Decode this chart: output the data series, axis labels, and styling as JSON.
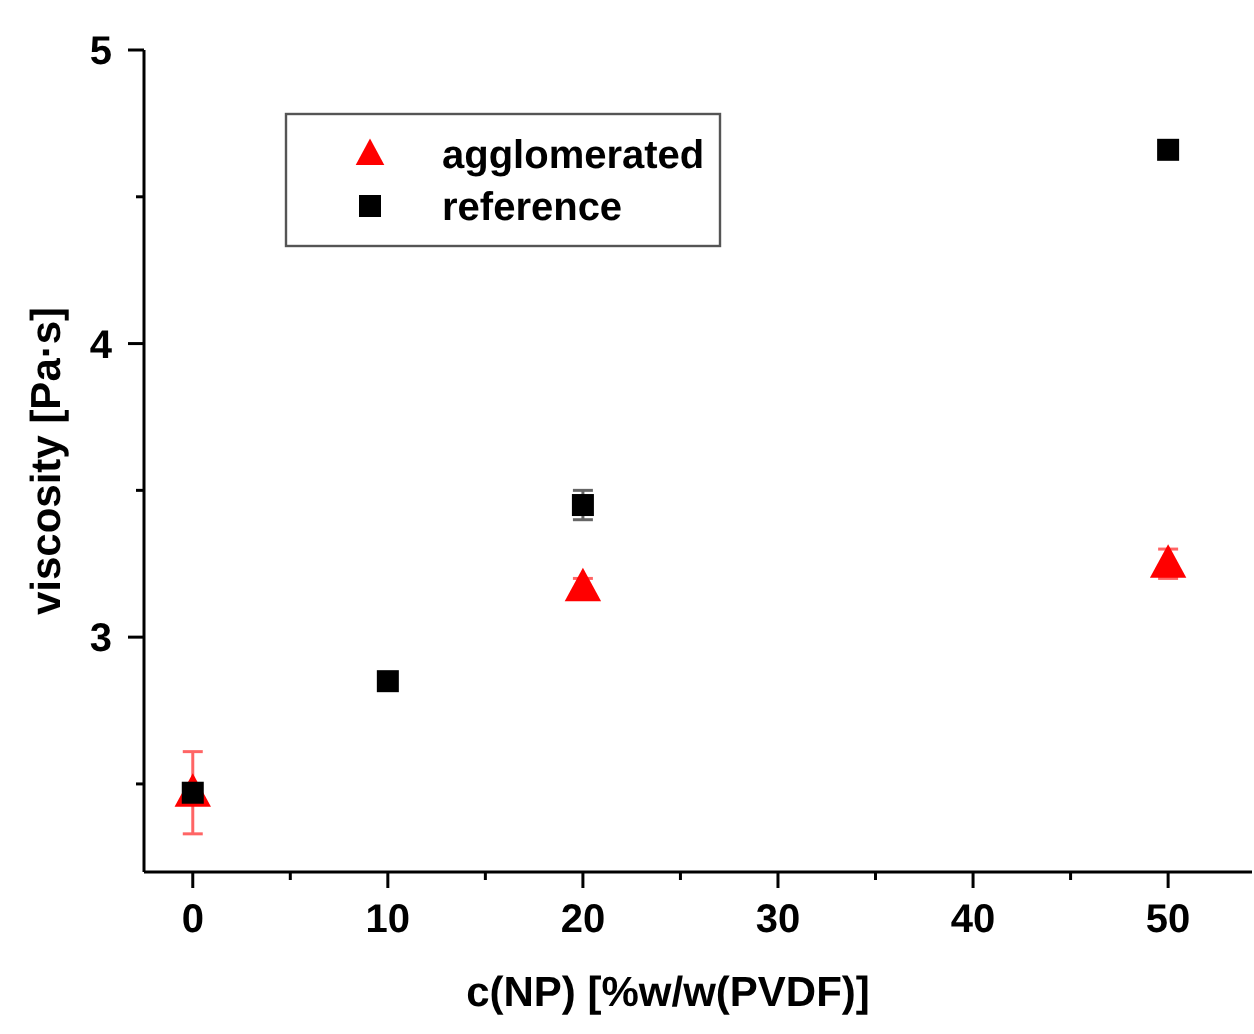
{
  "chart_data": {
    "type": "scatter",
    "xlabel": "c(NP) [%w/w(PVDF)]",
    "ylabel": "viscosity [Pa·s]",
    "x": [
      0,
      10,
      20,
      50
    ],
    "xlim": [
      -2.5,
      54.3
    ],
    "xticks": [
      0,
      {
        "value": 5,
        "label": null
      },
      10,
      {
        "value": 15,
        "label": null
      },
      20,
      {
        "value": 25,
        "label": null
      },
      30,
      {
        "value": 35,
        "label": null
      },
      40,
      {
        "value": 45,
        "label": null
      },
      50
    ],
    "ylim": [
      2.2,
      5
    ],
    "yticks": [
      {
        "value": 2.5,
        "label": null
      },
      3,
      {
        "value": 3.5,
        "label": null
      },
      4,
      {
        "value": 4.5,
        "label": null
      },
      5
    ],
    "series": [
      {
        "name": "agglomerated",
        "color": "#ff0000",
        "marker": "triangle",
        "values": [
          2.47,
          null,
          3.17,
          3.25
        ],
        "errors": [
          0.14,
          null,
          0.03,
          0.05
        ]
      },
      {
        "name": "reference",
        "color": "#000000",
        "marker": "square",
        "values": [
          2.47,
          2.85,
          3.45,
          4.66
        ],
        "errors": [
          null,
          null,
          0.05,
          null
        ]
      }
    ],
    "grid": false,
    "legend": "top left"
  }
}
